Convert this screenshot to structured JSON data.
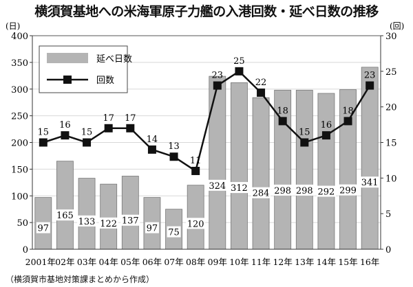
{
  "chart_data": {
    "type": "bar+line",
    "title": "横須賀基地への米海軍原子力艦の入港回数・延べ日数の推移",
    "source": "（横須賀市基地対策課まとめから作成）",
    "categories": [
      "2001年",
      "02年",
      "03年",
      "04年",
      "05年",
      "06年",
      "07年",
      "08年",
      "09年",
      "10年",
      "11年",
      "12年",
      "13年",
      "14年",
      "15年",
      "16年"
    ],
    "left_axis": {
      "unit": "(日)",
      "ylim": [
        0,
        400
      ],
      "ticks": [
        0,
        50,
        100,
        150,
        200,
        250,
        300,
        350,
        400
      ]
    },
    "right_axis": {
      "unit": "(回)",
      "ylim": [
        0,
        30
      ],
      "ticks": [
        0,
        5,
        10,
        15,
        20,
        25,
        30
      ]
    },
    "legend": {
      "placement": "top-left",
      "bar_label": "延べ日数",
      "line_label": "回数"
    },
    "series": [
      {
        "name": "延べ日数",
        "type": "bar",
        "axis": "left",
        "color": "#b4b4b4",
        "values": [
          97,
          165,
          133,
          122,
          137,
          97,
          75,
          120,
          324,
          312,
          284,
          298,
          298,
          292,
          299,
          341
        ]
      },
      {
        "name": "回数",
        "type": "line",
        "axis": "right",
        "color": "#111111",
        "values": [
          15,
          16,
          15,
          17,
          17,
          14,
          13,
          11,
          23,
          25,
          22,
          18,
          15,
          16,
          18,
          23
        ]
      }
    ]
  }
}
